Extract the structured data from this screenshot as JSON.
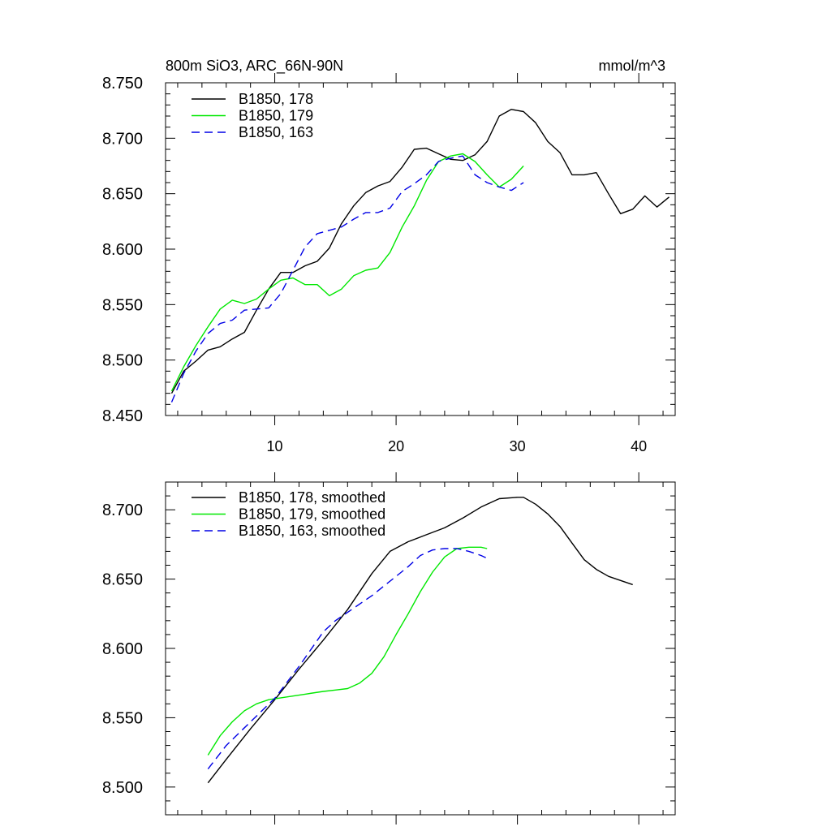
{
  "chart_data": [
    {
      "type": "line",
      "title": "800m SiO3, ARC_66N-90N",
      "units": "mmol/m^3",
      "xlabel": "",
      "ylabel": "",
      "xlim": [
        1,
        43
      ],
      "ylim": [
        8.45,
        8.75
      ],
      "xticks": [
        10,
        20,
        30,
        40
      ],
      "xtick_labels": [
        "10",
        "20",
        "30",
        "40"
      ],
      "yticks": [
        8.45,
        8.5,
        8.55,
        8.6,
        8.65,
        8.7,
        8.75
      ],
      "ytick_labels": [
        "8.450",
        "8.500",
        "8.550",
        "8.600",
        "8.650",
        "8.700",
        "8.750"
      ],
      "legend_position": "top-left",
      "series": [
        {
          "name": "B1850, 178",
          "color": "#000000",
          "dash": "solid",
          "x": [
            1.5,
            2.5,
            3.5,
            4.5,
            5.5,
            6.5,
            7.5,
            8.5,
            9.5,
            10.5,
            11.5,
            12.5,
            13.5,
            14.5,
            15.5,
            16.5,
            17.5,
            18.5,
            19.5,
            20.5,
            21.5,
            22.5,
            23.5,
            24.5,
            25.5,
            26.5,
            27.5,
            28.5,
            29.5,
            30.5,
            31.5,
            32.5,
            33.5,
            34.5,
            35.5,
            36.5,
            37.5,
            38.5,
            39.5,
            40.5,
            41.5,
            42.5
          ],
          "values": [
            8.47,
            8.49,
            8.499,
            8.509,
            8.512,
            8.519,
            8.525,
            8.545,
            8.564,
            8.579,
            8.579,
            8.585,
            8.589,
            8.601,
            8.623,
            8.639,
            8.651,
            8.657,
            8.661,
            8.674,
            8.69,
            8.691,
            8.686,
            8.681,
            8.68,
            8.685,
            8.697,
            8.72,
            8.726,
            8.724,
            8.714,
            8.697,
            8.687,
            8.667,
            8.667,
            8.669,
            8.65,
            8.632,
            8.636,
            8.648,
            8.638,
            8.647
          ]
        },
        {
          "name": "B1850, 179",
          "color": "#00e800",
          "dash": "solid",
          "x": [
            1.5,
            2.5,
            3.5,
            4.5,
            5.5,
            6.5,
            7.5,
            8.5,
            9.5,
            10.5,
            11.5,
            12.5,
            13.5,
            14.5,
            15.5,
            16.5,
            17.5,
            18.5,
            19.5,
            20.5,
            21.5,
            22.5,
            23.5,
            24.5,
            25.5,
            26.5,
            27.5,
            28.5,
            29.5,
            30.5
          ],
          "values": [
            8.472,
            8.494,
            8.513,
            8.53,
            8.546,
            8.554,
            8.551,
            8.555,
            8.564,
            8.572,
            8.574,
            8.568,
            8.568,
            8.558,
            8.564,
            8.576,
            8.581,
            8.583,
            8.597,
            8.62,
            8.639,
            8.662,
            8.679,
            8.684,
            8.686,
            8.679,
            8.667,
            8.656,
            8.663,
            8.675
          ]
        },
        {
          "name": "B1850, 163",
          "color": "#0000e6",
          "dash": "dashed",
          "x": [
            1.5,
            2.5,
            3.5,
            4.5,
            5.5,
            6.5,
            7.5,
            8.5,
            9.5,
            10.5,
            11.5,
            12.5,
            13.5,
            14.5,
            15.5,
            16.5,
            17.5,
            18.5,
            19.5,
            20.5,
            21.5,
            22.5,
            23.5,
            24.5,
            25.5,
            26.5,
            27.5,
            28.5,
            29.5,
            30.5
          ],
          "values": [
            8.462,
            8.488,
            8.508,
            8.524,
            8.533,
            8.536,
            8.545,
            8.546,
            8.547,
            8.56,
            8.581,
            8.602,
            8.614,
            8.617,
            8.62,
            8.627,
            8.633,
            8.633,
            8.637,
            8.652,
            8.659,
            8.667,
            8.679,
            8.682,
            8.684,
            8.667,
            8.66,
            8.656,
            8.653,
            8.66
          ]
        }
      ]
    },
    {
      "type": "line",
      "title": "",
      "xlabel": "",
      "ylabel": "",
      "xlim": [
        1,
        43
      ],
      "ylim": [
        8.48,
        8.72
      ],
      "xticks": [
        10,
        20,
        30,
        40
      ],
      "xtick_labels": [],
      "yticks": [
        8.5,
        8.55,
        8.6,
        8.65,
        8.7
      ],
      "ytick_labels": [
        "8.500",
        "8.550",
        "8.600",
        "8.650",
        "8.700"
      ],
      "legend_position": "top-left",
      "series": [
        {
          "name": "B1850, 178, smoothed",
          "color": "#000000",
          "dash": "solid",
          "x": [
            4.5,
            6,
            8,
            10,
            12,
            14,
            16,
            18,
            19.5,
            21,
            22.5,
            24,
            25.5,
            27,
            28.5,
            30,
            30.5,
            31.5,
            32.5,
            33.5,
            34.5,
            35.5,
            36.5,
            37.5,
            38.5,
            39.5
          ],
          "values": [
            8.503,
            8.52,
            8.542,
            8.563,
            8.585,
            8.606,
            8.628,
            8.654,
            8.67,
            8.677,
            8.682,
            8.687,
            8.694,
            8.702,
            8.708,
            8.709,
            8.709,
            8.704,
            8.697,
            8.688,
            8.676,
            8.664,
            8.657,
            8.652,
            8.649,
            8.646
          ]
        },
        {
          "name": "B1850, 179, smoothed",
          "color": "#00e800",
          "dash": "solid",
          "x": [
            4.5,
            5.5,
            6.5,
            7.5,
            8.5,
            9.5,
            11,
            12.5,
            14,
            15,
            16,
            17,
            18,
            19,
            20,
            21,
            22,
            23,
            24,
            25,
            26,
            27,
            27.5
          ],
          "values": [
            8.523,
            8.537,
            8.547,
            8.555,
            8.56,
            8.563,
            8.565,
            8.567,
            8.569,
            8.57,
            8.571,
            8.575,
            8.582,
            8.594,
            8.61,
            8.625,
            8.641,
            8.655,
            8.666,
            8.672,
            8.673,
            8.673,
            8.672
          ]
        },
        {
          "name": "B1850, 163, smoothed",
          "color": "#0000e6",
          "dash": "dashed",
          "x": [
            4.5,
            6,
            8,
            10,
            12,
            14,
            15,
            16,
            17,
            18,
            19,
            20,
            21,
            22,
            23,
            24,
            25,
            26,
            27,
            27.5
          ],
          "values": [
            8.513,
            8.53,
            8.547,
            8.564,
            8.587,
            8.612,
            8.62,
            8.626,
            8.632,
            8.638,
            8.645,
            8.652,
            8.659,
            8.667,
            8.671,
            8.672,
            8.672,
            8.67,
            8.667,
            8.665
          ]
        }
      ]
    }
  ]
}
